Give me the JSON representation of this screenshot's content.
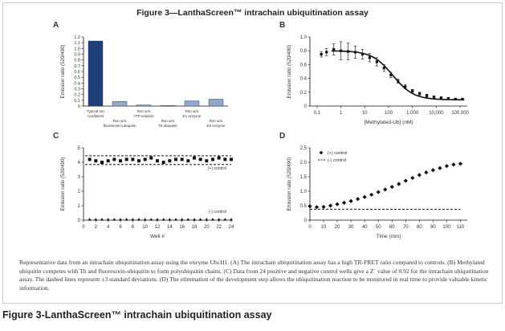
{
  "figure_title": "Figure 3—LanthaScreen™ intrachain ubiquitination assay",
  "caption": "Representative data from an intrachain ubiquitination assay using the enzyme UbcH1. (A) The intrachain ubiquitination assay has a high TR-FRET ratio compared to controls. (B) Methylated ubiquitin competes with Tb and fluorescein-ubiquitin to form polyubiquitin chains. (C) Data from 24 positive and negative control wells give a Z´ value of 0.92 for the intrachain ubiquitination assay. The dashed lines represent ±3 standard deviations. (D) The elimination of the development step allows the ubiquitination reaction to be monitored in real time to provide valuable kinetic information.",
  "footer_title": "Figure 3-LanthaScreen™ intrachain ubiquitination assay",
  "colors": {
    "bar_dark": "#1f3f7a",
    "bar_light": "#93a8c9",
    "ink": "#111111"
  },
  "chart_data": [
    {
      "panel": "A",
      "type": "bar",
      "ylabel": "Emission ratio (520/490)",
      "xlabel": "",
      "ylim": [
        0,
        1.2
      ],
      "yticks": [
        "0",
        "0.1",
        "0.2",
        "0.3",
        "0.4",
        "0.5",
        "0.6",
        "0.7",
        "0.8",
        "0.9",
        "1.0",
        "1.1",
        "1.2"
      ],
      "categories": [
        [
          "Typical rxn",
          "conditions"
        ],
        [
          "Rxn w/o",
          "fluorescein-ubiquitin"
        ],
        [
          "Rxn w/o",
          "ATP solution"
        ],
        [
          "Rxn w/o",
          "Tb-ubiquitin"
        ],
        [
          "Rxn w/o",
          "E1 enzyme"
        ],
        [
          "Rxn w/o",
          "E2 enzyme"
        ]
      ],
      "values": [
        1.13,
        0.08,
        0.02,
        0.01,
        0.09,
        0.12
      ]
    },
    {
      "panel": "B",
      "type": "scatter",
      "xlabel": "[Methylated-Ub] (nM)",
      "ylabel": "Emission ratio (520/490)",
      "xscale": "log",
      "xlim": [
        0.05,
        200000
      ],
      "ylim": [
        0,
        1.0
      ],
      "xticks": [
        "0.1",
        "1",
        "10",
        "100",
        "1,000",
        "10,000",
        "100,000"
      ],
      "yticks": [
        "0",
        "0.2",
        "0.4",
        "0.6",
        "0.8",
        "1.0"
      ],
      "points": [
        {
          "x": 0.15,
          "y": 0.75,
          "err": 0.04
        },
        {
          "x": 0.25,
          "y": 0.78,
          "err": 0.05
        },
        {
          "x": 0.5,
          "y": 0.82,
          "err": 0.08
        },
        {
          "x": 1,
          "y": 0.8,
          "err": 0.13
        },
        {
          "x": 2,
          "y": 0.79,
          "err": 0.12
        },
        {
          "x": 4,
          "y": 0.78,
          "err": 0.09
        },
        {
          "x": 8,
          "y": 0.75,
          "err": 0.07
        },
        {
          "x": 16,
          "y": 0.7,
          "err": 0.06
        },
        {
          "x": 32,
          "y": 0.64,
          "err": 0.06
        },
        {
          "x": 64,
          "y": 0.55,
          "err": 0.05
        },
        {
          "x": 125,
          "y": 0.45,
          "err": 0.04
        },
        {
          "x": 250,
          "y": 0.36,
          "err": 0.03
        },
        {
          "x": 500,
          "y": 0.28,
          "err": 0.03
        },
        {
          "x": 1000,
          "y": 0.22,
          "err": 0.02
        },
        {
          "x": 2000,
          "y": 0.18,
          "err": 0.02
        },
        {
          "x": 4000,
          "y": 0.15,
          "err": 0.02
        },
        {
          "x": 8000,
          "y": 0.13,
          "err": 0.015
        },
        {
          "x": 16000,
          "y": 0.12,
          "err": 0.01
        },
        {
          "x": 32000,
          "y": 0.11,
          "err": 0.01
        },
        {
          "x": 64000,
          "y": 0.1,
          "err": 0.01
        },
        {
          "x": 125000,
          "y": 0.1,
          "err": 0.01
        }
      ],
      "fit": {
        "top": 0.8,
        "bottom": 0.09,
        "ic50": 150,
        "hill": 1.0
      }
    },
    {
      "panel": "C",
      "type": "scatter",
      "xlabel": "Well #",
      "ylabel": "Emission ratio (520/490)",
      "xlim": [
        0,
        24
      ],
      "ylim": [
        0,
        5
      ],
      "xticks": [
        "0",
        "2",
        "4",
        "6",
        "8",
        "10",
        "12",
        "14",
        "16",
        "18",
        "20",
        "22",
        "24"
      ],
      "yticks": [
        "0",
        "1",
        "2",
        "3",
        "4",
        "5"
      ],
      "series": [
        {
          "name": "(+) control",
          "marker": "square",
          "x": [
            1,
            2,
            3,
            4,
            5,
            6,
            7,
            8,
            9,
            10,
            11,
            12,
            13,
            14,
            15,
            16,
            17,
            18,
            19,
            20,
            21,
            22,
            23,
            24
          ],
          "values": [
            4.2,
            4.1,
            4.0,
            4.1,
            4.2,
            4.1,
            4.2,
            4.2,
            4.1,
            4.2,
            4.3,
            4.1,
            4.0,
            4.1,
            4.2,
            4.2,
            4.1,
            4.3,
            4.2,
            4.1,
            4.2,
            4.3,
            4.2,
            4.2
          ]
        },
        {
          "name": "(-) control",
          "marker": "triangle",
          "x": [
            1,
            2,
            3,
            4,
            5,
            6,
            7,
            8,
            9,
            10,
            11,
            12,
            13,
            14,
            15,
            16,
            17,
            18,
            19,
            20,
            21,
            22,
            23,
            24
          ],
          "values": [
            0.05,
            0.05,
            0.05,
            0.05,
            0.05,
            0.05,
            0.05,
            0.05,
            0.05,
            0.05,
            0.05,
            0.05,
            0.05,
            0.05,
            0.05,
            0.05,
            0.05,
            0.05,
            0.05,
            0.05,
            0.05,
            0.05,
            0.05,
            0.05
          ]
        }
      ],
      "sd_lines": [
        4.45,
        3.85
      ],
      "annotations": [
        "(+) control",
        "(-) control"
      ]
    },
    {
      "panel": "D",
      "type": "scatter",
      "xlabel": "Time (min)",
      "ylabel": "Emission ratio (520/490)",
      "xlim": [
        0,
        115
      ],
      "ylim": [
        0,
        2.5
      ],
      "xticks": [
        "0",
        "10",
        "20",
        "30",
        "40",
        "50",
        "60",
        "70",
        "80",
        "90",
        "100",
        "110"
      ],
      "yticks": [
        "0",
        "0.5",
        "1.0",
        "1.5",
        "2.0",
        "2.5"
      ],
      "series": [
        {
          "name": "(+) control",
          "marker": "diamond",
          "x": [
            0,
            5,
            10,
            15,
            20,
            25,
            30,
            35,
            40,
            45,
            50,
            55,
            60,
            65,
            70,
            75,
            80,
            85,
            90,
            95,
            100,
            105,
            110
          ],
          "values": [
            0.48,
            0.45,
            0.46,
            0.5,
            0.55,
            0.6,
            0.66,
            0.73,
            0.8,
            0.88,
            0.97,
            1.06,
            1.15,
            1.25,
            1.36,
            1.46,
            1.56,
            1.65,
            1.73,
            1.8,
            1.87,
            1.92,
            1.95
          ]
        },
        {
          "name": "(-) control",
          "style": "dashed",
          "x": [
            0,
            110
          ],
          "values": [
            0.38,
            0.37
          ]
        }
      ],
      "legend": [
        "(+) control",
        "(-) control"
      ]
    }
  ]
}
